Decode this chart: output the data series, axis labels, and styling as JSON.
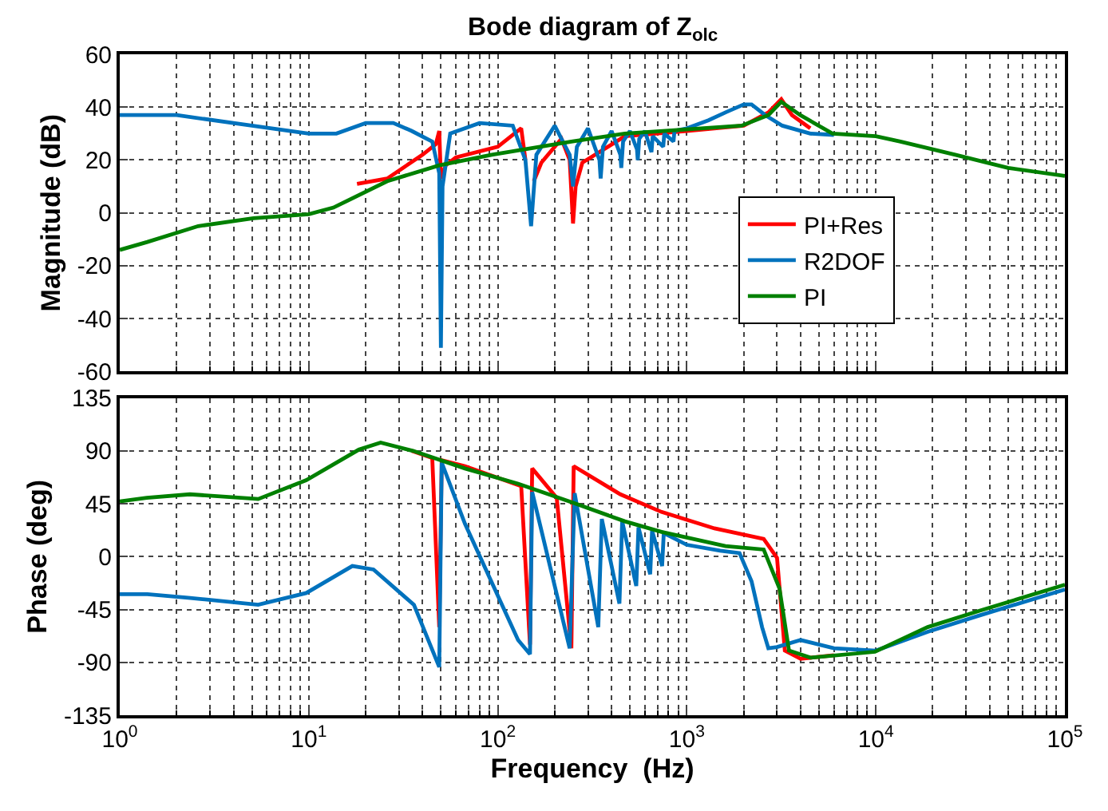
{
  "chart_data": [
    {
      "type": "line",
      "title": "Bode diagram of Z$_{olc}$",
      "ylabel": "Magnitude (dB)",
      "log": "x",
      "grid": true,
      "legend": "right",
      "tick_labels": "y",
      "line_style": "solid",
      "marker": "none",
      "xlim": [
        1,
        100000
      ],
      "xticks": [
        {
          "value": 1,
          "label": "10$^{0}$"
        },
        {
          "value": 10,
          "label": "10$^{1}$"
        },
        {
          "value": 100,
          "label": "10$^{2}$"
        },
        {
          "value": 1000,
          "label": "10$^{3}$"
        },
        {
          "value": 10000,
          "label": "10$^{4}$"
        },
        {
          "value": 100000,
          "label": "10$^{5}$"
        }
      ],
      "ylim": [
        -60,
        60
      ],
      "yticks": [
        -60,
        -40,
        -20,
        0,
        20,
        40,
        60
      ],
      "series": [
        {
          "name": "PI+Res",
          "color": "#ff0000",
          "x": [
            18,
            26,
            40,
            47,
            49,
            50,
            53,
            60,
            100,
            133,
            140,
            150,
            155,
            170,
            217,
            240,
            250,
            258,
            280,
            470,
            1000,
            2000,
            2700,
            3160,
            3600,
            4500
          ],
          "values": [
            11,
            13,
            22,
            26,
            31,
            13,
            18,
            21,
            25,
            32,
            20,
            null,
            12,
            19,
            28,
            20,
            -4,
            10,
            19,
            29,
            31,
            33,
            38,
            43,
            37,
            32
          ]
        },
        {
          "name": "R2DOF",
          "color": "#0072bd",
          "x": [
            1,
            2,
            5,
            10,
            14,
            20,
            28,
            35,
            45,
            49,
            50,
            51,
            56,
            80,
            120,
            140,
            150,
            160,
            200,
            240,
            250,
            262,
            300,
            345,
            350,
            360,
            400,
            445,
            450,
            460,
            500,
            545,
            550,
            560,
            600,
            650,
            660,
            750,
            760,
            850,
            860,
            1000,
            1300,
            1600,
            2000,
            2200,
            2600,
            3200,
            4500,
            6000
          ],
          "values": [
            37,
            37,
            33,
            30,
            30,
            34,
            34,
            31,
            27,
            15,
            -51,
            10,
            30,
            34,
            33,
            20,
            -5,
            22,
            33,
            22,
            10,
            25,
            32,
            20,
            13,
            25,
            31,
            22,
            17,
            27,
            31,
            24,
            20,
            28,
            31,
            23,
            29,
            25,
            30,
            27,
            31,
            32,
            35,
            38,
            41,
            41,
            37,
            33,
            30,
            29.5
          ]
        },
        {
          "name": "PI",
          "color": "#008000",
          "x": [
            1,
            1.4,
            2.6,
            5.1,
            10,
            13.5,
            26,
            49,
            93,
            245,
            470,
            1950,
            2700,
            3160,
            3980,
            5900,
            10000,
            13500,
            26300,
            50100,
            100000
          ],
          "values": [
            -14,
            -11,
            -5,
            -2,
            -0.5,
            2,
            12,
            18,
            22,
            27,
            30,
            33,
            37,
            42,
            37,
            30,
            29,
            27,
            22,
            17,
            14
          ]
        }
      ]
    },
    {
      "type": "line",
      "ylabel": "Phase (deg)",
      "xlabel": "Frequency  (Hz)",
      "log": "x",
      "grid": true,
      "line_style": "solid",
      "marker": "none",
      "xlim": [
        1,
        100000
      ],
      "xticks": [
        {
          "value": 1,
          "label": "10$^{0}$"
        },
        {
          "value": 10,
          "label": "10$^{1}$"
        },
        {
          "value": 100,
          "label": "10$^{2}$"
        },
        {
          "value": 1000,
          "label": "10$^{3}$"
        },
        {
          "value": 10000,
          "label": "10$^{4}$"
        },
        {
          "value": 100000,
          "label": "10$^{5}$"
        }
      ],
      "ylim": [
        -135,
        135
      ],
      "yticks": [
        -135,
        -90,
        -45,
        0,
        45,
        90,
        135
      ],
      "series": [
        {
          "color": "#ff0000",
          "x": [
            35,
            45,
            49,
            50.5,
            67,
            133,
            148,
            152,
            205,
            245,
            252,
            445,
            735,
            1400,
            2550,
            3000,
            3300,
            4000,
            6000
          ],
          "values": [
            90,
            84,
            -60,
            82,
            77,
            60,
            -75,
            75,
            50,
            -78,
            77,
            53,
            38,
            24,
            15,
            -1,
            -80,
            -87,
            -84
          ]
        },
        {
          "color": "#0072bd",
          "x": [
            1,
            1.4,
            2.3,
            5.4,
            9.7,
            17,
            22,
            36,
            49,
            50.5,
            67,
            128,
            148,
            152,
            240,
            255,
            340,
            355,
            440,
            455,
            540,
            555,
            640,
            655,
            740,
            755,
            1000,
            1500,
            1900,
            2200,
            2500,
            2700,
            3000,
            4000,
            6000,
            10000,
            18800,
            35500,
            100000
          ],
          "values": [
            -32,
            -32,
            -35,
            -41,
            -31,
            -8,
            -11,
            -41,
            -94,
            80,
            28,
            -71,
            -83,
            55,
            -78,
            54,
            -60,
            32,
            -40,
            30,
            -25,
            25,
            -15,
            22,
            -8,
            20,
            10,
            5,
            3,
            -21,
            -60,
            -78,
            -77,
            -71,
            -78,
            -80,
            -64,
            -50,
            -28
          ]
        },
        {
          "color": "#008000",
          "x": [
            1,
            1.39,
            2.35,
            5.4,
            9.7,
            18.4,
            24,
            35.6,
            67,
            128,
            248,
            470,
            735,
            1600,
            2550,
            3090,
            3470,
            4500,
            9900,
            18800,
            35500,
            100000
          ],
          "values": [
            47,
            50,
            53,
            49,
            65,
            91,
            97,
            90,
            75,
            62,
            46,
            30,
            21,
            9,
            6,
            -27,
            -80,
            -86,
            -81,
            -60,
            -46,
            -24
          ]
        }
      ]
    }
  ]
}
